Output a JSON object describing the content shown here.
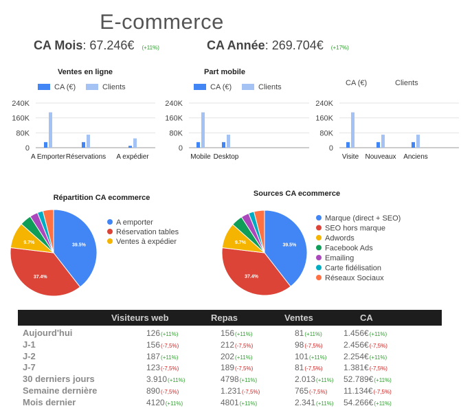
{
  "title": "E-commerce",
  "kpis": {
    "month": {
      "label": "CA Mois",
      "value": "67.246€",
      "change": "(+11%)"
    },
    "year": {
      "label": "CA Année",
      "value": "269.704€",
      "change": "(+17%)"
    }
  },
  "colors": {
    "ca": "#4285f4",
    "clients": "#a4c2f4",
    "positive": "#2e9e2e",
    "negative": "#cc2222",
    "header_bg": "#1d1d1d"
  },
  "chart_data": [
    {
      "type": "bar",
      "title": "Ventes en ligne",
      "categories": [
        "A Emporter",
        "Réservations",
        "A expédier"
      ],
      "series": [
        {
          "name": "CA (€)",
          "values": [
            30000,
            30000,
            10000
          ]
        },
        {
          "name": "Clients",
          "values": [
            190000,
            70000,
            50000
          ]
        }
      ],
      "yticks": [
        "240K",
        "160K",
        "80K",
        "0"
      ],
      "ylim": [
        0,
        240000
      ],
      "legend": "top"
    },
    {
      "type": "bar",
      "title": "Part mobile",
      "categories": [
        "Mobile",
        "Desktop"
      ],
      "series": [
        {
          "name": "CA (€)",
          "values": [
            30000,
            30000
          ]
        },
        {
          "name": "Clients",
          "values": [
            190000,
            70000
          ]
        }
      ],
      "yticks": [
        "240K",
        "160K",
        "80K",
        "0"
      ],
      "ylim": [
        0,
        240000
      ],
      "legend": "top"
    },
    {
      "type": "bar",
      "title": "",
      "categories": [
        "Visite",
        "Nouveaux",
        "Anciens"
      ],
      "series": [
        {
          "name": "CA (€)",
          "values": [
            30000,
            30000,
            30000
          ]
        },
        {
          "name": "Clients",
          "values": [
            190000,
            70000,
            70000
          ]
        }
      ],
      "yticks": [
        "240K",
        "160K",
        "80K",
        "0"
      ],
      "ylim": [
        0,
        240000
      ],
      "legend": "top"
    },
    {
      "type": "pie",
      "title": "Répartition CA ecommerce",
      "labels": [
        "A emporter",
        "Réservation tables",
        "Ventes à expédier",
        "",
        "",
        "",
        ""
      ],
      "values": [
        39.5,
        37.4,
        9.7,
        4.3,
        3.0,
        2.1,
        4.0
      ],
      "slice_labels": [
        "39.5%",
        "37.4%",
        "9.7%",
        "",
        "",
        "",
        ""
      ],
      "colors": [
        "#4285f4",
        "#db4437",
        "#f4b400",
        "#0f9d58",
        "#ab47bc",
        "#00acc1",
        "#ff7043"
      ],
      "legend_count": 3
    },
    {
      "type": "pie",
      "title": "Sources CA ecommerce",
      "labels": [
        "Marque (direct + SEO)",
        "SEO hors marque",
        "Adwords",
        "Facebook Ads",
        "Emailing",
        "Carte fidélisation",
        "Réseaux Sociaux"
      ],
      "values": [
        39.5,
        37.4,
        9.7,
        4.3,
        3.0,
        2.1,
        4.0
      ],
      "slice_labels": [
        "39.5%",
        "37.4%",
        "9.7%",
        "",
        "",
        "",
        ""
      ],
      "colors": [
        "#4285f4",
        "#db4437",
        "#f4b400",
        "#0f9d58",
        "#ab47bc",
        "#00acc1",
        "#ff7043"
      ],
      "legend_count": 7
    }
  ],
  "table": {
    "headers": [
      "Visiteurs web",
      "Repas",
      "Ventes",
      "CA"
    ],
    "rows": [
      {
        "label": "Aujourd'hui",
        "cells": [
          {
            "v": "126",
            "c": "(+11%)",
            "t": "pos"
          },
          {
            "v": "156",
            "c": "(+11%)",
            "t": "pos"
          },
          {
            "v": "81",
            "c": "(+11%)",
            "t": "pos"
          },
          {
            "v": "1.456€",
            "c": "(+11%)",
            "t": "pos"
          }
        ]
      },
      {
        "label": "J-1",
        "cells": [
          {
            "v": "156",
            "c": "(-7,5%)",
            "t": "neg"
          },
          {
            "v": "212",
            "c": "(-7,5%)",
            "t": "neg"
          },
          {
            "v": "98",
            "c": "(-7,5%)",
            "t": "neg"
          },
          {
            "v": "2.456€",
            "c": "(-7,5%)",
            "t": "neg"
          }
        ]
      },
      {
        "label": "J-2",
        "cells": [
          {
            "v": "187",
            "c": "(+11%)",
            "t": "pos"
          },
          {
            "v": "202",
            "c": "(+11%)",
            "t": "pos"
          },
          {
            "v": "101",
            "c": "(+11%)",
            "t": "pos"
          },
          {
            "v": "2.254€",
            "c": "(+11%)",
            "t": "pos"
          }
        ]
      },
      {
        "label": "J-7",
        "cells": [
          {
            "v": "123",
            "c": "(-7,5%)",
            "t": "neg"
          },
          {
            "v": "189",
            "c": "(-7,5%)",
            "t": "neg"
          },
          {
            "v": "81",
            "c": "(-7,5%)",
            "t": "neg"
          },
          {
            "v": "1.381€",
            "c": "(-7,5%)",
            "t": "neg"
          }
        ]
      },
      {
        "label": "30 derniers jours",
        "cells": [
          {
            "v": "3.910",
            "c": "(+11%)",
            "t": "pos"
          },
          {
            "v": "4798",
            "c": "(+11%)",
            "t": "pos"
          },
          {
            "v": "2.013",
            "c": "(+11%)",
            "t": "pos"
          },
          {
            "v": "52.789€",
            "c": "(+11%)",
            "t": "pos"
          }
        ]
      },
      {
        "label": "Semaine dernière",
        "cells": [
          {
            "v": "890",
            "c": "(-7,5%)",
            "t": "neg"
          },
          {
            "v": "1.231",
            "c": "(-7,5%)",
            "t": "neg"
          },
          {
            "v": "765",
            "c": "(-7,5%)",
            "t": "neg"
          },
          {
            "v": "11.134€",
            "c": "(-7,5%)",
            "t": "neg"
          }
        ]
      },
      {
        "label": "Mois dernier",
        "cells": [
          {
            "v": "4120",
            "c": "(+11%)",
            "t": "pos"
          },
          {
            "v": "4801",
            "c": "(+11%)",
            "t": "pos"
          },
          {
            "v": "2.341",
            "c": "(+11%)",
            "t": "pos"
          },
          {
            "v": "54.266€",
            "c": "(+11%)",
            "t": "pos"
          }
        ]
      }
    ]
  }
}
